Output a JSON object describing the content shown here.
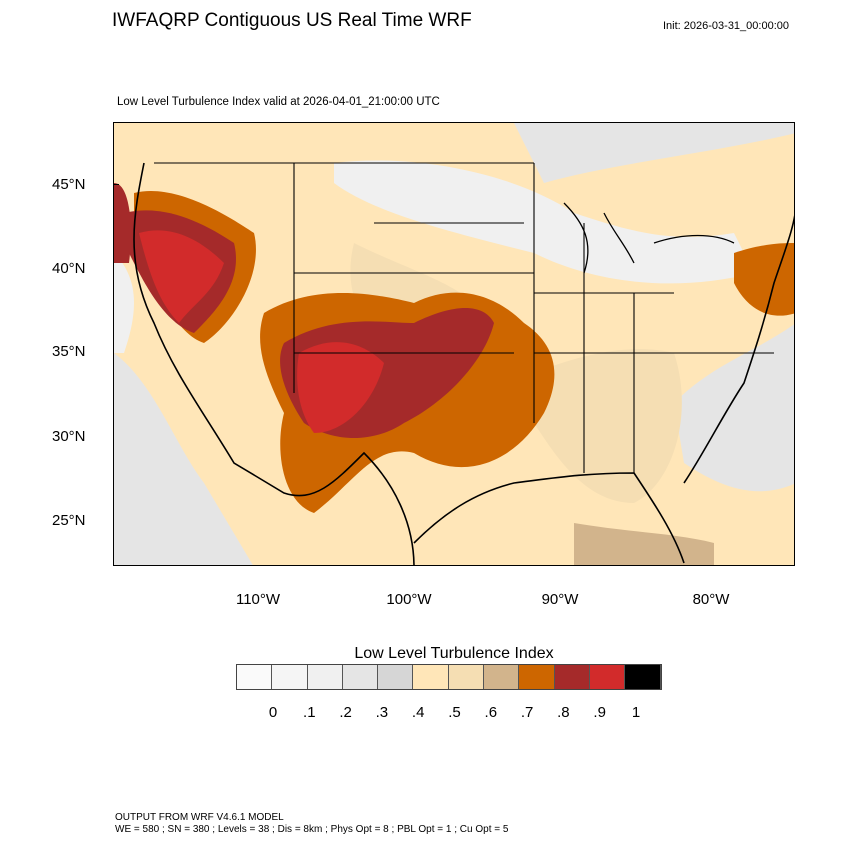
{
  "header": {
    "title": "IWFAQRP Contiguous US Real Time WRF",
    "init": "Init: 2026-03-31_00:00:00",
    "subtitle": "Low Level Turbulence Index valid at 2026-04-01_21:00:00 UTC"
  },
  "map": {
    "lat_labels": [
      "45°N",
      "40°N",
      "35°N",
      "30°N",
      "25°N"
    ],
    "lon_labels": [
      "110°W",
      "100°W",
      "90°W",
      "80°W"
    ],
    "features": "county and state boundaries, coastlines"
  },
  "colorbar": {
    "title": "Low Level Turbulence Index",
    "labels": [
      "0",
      ".1",
      ".2",
      ".3",
      ".4",
      ".5",
      ".6",
      ".7",
      ".8",
      ".9",
      "1"
    ],
    "colors": [
      "#fafafa",
      "#f5f5f5",
      "#f0f0f0",
      "#e5e5e5",
      "#d6d6d6",
      "#ffe6b8",
      "#f5deb3",
      "#d2b48c",
      "#cd6600",
      "#a52a2a",
      "#d22b2b",
      "#000000"
    ]
  },
  "footer": {
    "line1": "OUTPUT FROM WRF V4.6.1 MODEL",
    "line2": "WE = 580 ; SN = 380 ; Levels = 38 ; Dis = 8km ; Phys Opt = 8 ; PBL Opt = 1 ; Cu Opt = 5"
  }
}
